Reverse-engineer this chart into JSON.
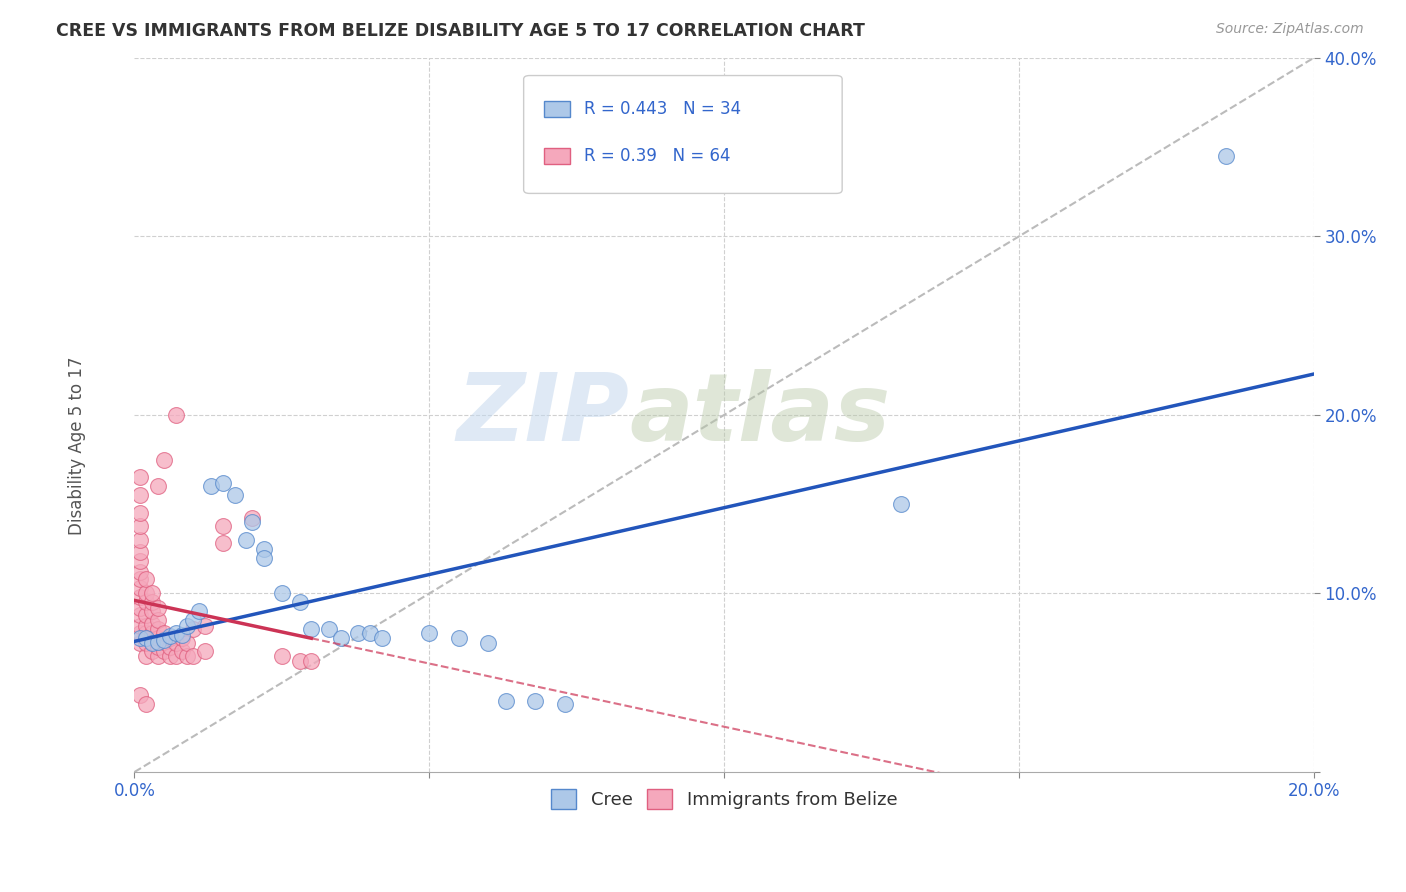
{
  "title": "CREE VS IMMIGRANTS FROM BELIZE DISABILITY AGE 5 TO 17 CORRELATION CHART",
  "source": "Source: ZipAtlas.com",
  "ylabel": "Disability Age 5 to 17",
  "xlim": [
    0,
    0.2
  ],
  "ylim": [
    0,
    0.4
  ],
  "watermark_zip": "ZIP",
  "watermark_atlas": "atlas",
  "cree_color": "#adc8e8",
  "belize_color": "#f5a8bc",
  "cree_edge_color": "#5588cc",
  "belize_edge_color": "#e06080",
  "cree_line_color": "#2255bb",
  "belize_line_color": "#cc3355",
  "diagonal_color": "#bbbbbb",
  "cree_R": 0.443,
  "cree_N": 34,
  "belize_R": 0.39,
  "belize_N": 64,
  "legend_label_cree": "Cree",
  "legend_label_belize": "Immigrants from Belize",
  "cree_points": [
    [
      0.001,
      0.075
    ],
    [
      0.002,
      0.075
    ],
    [
      0.003,
      0.072
    ],
    [
      0.004,
      0.073
    ],
    [
      0.005,
      0.074
    ],
    [
      0.006,
      0.076
    ],
    [
      0.007,
      0.078
    ],
    [
      0.008,
      0.077
    ],
    [
      0.009,
      0.082
    ],
    [
      0.01,
      0.085
    ],
    [
      0.011,
      0.09
    ],
    [
      0.013,
      0.16
    ],
    [
      0.015,
      0.162
    ],
    [
      0.017,
      0.155
    ],
    [
      0.019,
      0.13
    ],
    [
      0.02,
      0.14
    ],
    [
      0.022,
      0.125
    ],
    [
      0.022,
      0.12
    ],
    [
      0.025,
      0.1
    ],
    [
      0.028,
      0.095
    ],
    [
      0.03,
      0.08
    ],
    [
      0.033,
      0.08
    ],
    [
      0.035,
      0.075
    ],
    [
      0.038,
      0.078
    ],
    [
      0.04,
      0.078
    ],
    [
      0.042,
      0.075
    ],
    [
      0.05,
      0.078
    ],
    [
      0.055,
      0.075
    ],
    [
      0.06,
      0.072
    ],
    [
      0.063,
      0.04
    ],
    [
      0.068,
      0.04
    ],
    [
      0.073,
      0.038
    ],
    [
      0.13,
      0.15
    ],
    [
      0.185,
      0.345
    ]
  ],
  "belize_points": [
    [
      0.001,
      0.072
    ],
    [
      0.001,
      0.078
    ],
    [
      0.001,
      0.082
    ],
    [
      0.001,
      0.088
    ],
    [
      0.001,
      0.092
    ],
    [
      0.001,
      0.098
    ],
    [
      0.001,
      0.103
    ],
    [
      0.001,
      0.108
    ],
    [
      0.001,
      0.112
    ],
    [
      0.001,
      0.118
    ],
    [
      0.001,
      0.123
    ],
    [
      0.001,
      0.13
    ],
    [
      0.001,
      0.138
    ],
    [
      0.001,
      0.145
    ],
    [
      0.001,
      0.155
    ],
    [
      0.001,
      0.165
    ],
    [
      0.002,
      0.065
    ],
    [
      0.002,
      0.072
    ],
    [
      0.002,
      0.078
    ],
    [
      0.002,
      0.082
    ],
    [
      0.002,
      0.088
    ],
    [
      0.002,
      0.095
    ],
    [
      0.002,
      0.1
    ],
    [
      0.002,
      0.108
    ],
    [
      0.003,
      0.068
    ],
    [
      0.003,
      0.073
    ],
    [
      0.003,
      0.078
    ],
    [
      0.003,
      0.083
    ],
    [
      0.003,
      0.09
    ],
    [
      0.003,
      0.095
    ],
    [
      0.003,
      0.1
    ],
    [
      0.004,
      0.065
    ],
    [
      0.004,
      0.07
    ],
    [
      0.004,
      0.075
    ],
    [
      0.004,
      0.08
    ],
    [
      0.004,
      0.085
    ],
    [
      0.004,
      0.092
    ],
    [
      0.004,
      0.16
    ],
    [
      0.005,
      0.068
    ],
    [
      0.005,
      0.073
    ],
    [
      0.005,
      0.078
    ],
    [
      0.005,
      0.175
    ],
    [
      0.006,
      0.065
    ],
    [
      0.006,
      0.07
    ],
    [
      0.006,
      0.075
    ],
    [
      0.007,
      0.065
    ],
    [
      0.007,
      0.072
    ],
    [
      0.007,
      0.2
    ],
    [
      0.008,
      0.068
    ],
    [
      0.008,
      0.075
    ],
    [
      0.009,
      0.065
    ],
    [
      0.009,
      0.072
    ],
    [
      0.01,
      0.065
    ],
    [
      0.01,
      0.08
    ],
    [
      0.012,
      0.068
    ],
    [
      0.012,
      0.082
    ],
    [
      0.015,
      0.128
    ],
    [
      0.015,
      0.138
    ],
    [
      0.02,
      0.142
    ],
    [
      0.025,
      0.065
    ],
    [
      0.028,
      0.062
    ],
    [
      0.03,
      0.062
    ],
    [
      0.001,
      0.043
    ],
    [
      0.002,
      0.038
    ]
  ]
}
